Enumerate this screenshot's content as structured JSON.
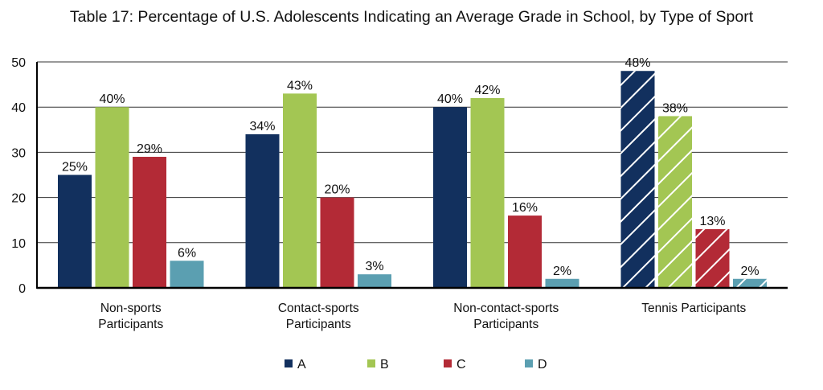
{
  "chart_data": {
    "type": "bar",
    "title": "Table 17: Percentage of U.S. Adolescents Indicating an Average Grade in School, by Type of Sport",
    "xlabel": "",
    "ylabel": "",
    "ylim": [
      0,
      50
    ],
    "yticks": [
      0,
      10,
      20,
      30,
      40,
      50
    ],
    "grid": true,
    "legend_position": "bottom",
    "categories": [
      [
        "Non-sports",
        "Participants"
      ],
      [
        "Contact-sports",
        "Participants"
      ],
      [
        "Non-contact-sports",
        "Participants"
      ],
      [
        "Tennis Participants"
      ]
    ],
    "hatched_categories": [
      3
    ],
    "series": [
      {
        "name": "A",
        "color": "#12305e",
        "values": [
          25,
          34,
          40,
          48
        ],
        "labels": [
          "25%",
          "34%",
          "40%",
          "48%"
        ]
      },
      {
        "name": "B",
        "color": "#a3c653",
        "values": [
          40,
          43,
          42,
          38
        ],
        "labels": [
          "40%",
          "43%",
          "42%",
          "38%"
        ]
      },
      {
        "name": "C",
        "color": "#b32a36",
        "values": [
          29,
          20,
          16,
          13
        ],
        "labels": [
          "29%",
          "20%",
          "16%",
          "13%"
        ]
      },
      {
        "name": "D",
        "color": "#5b9fb1",
        "values": [
          6,
          3,
          2,
          2
        ],
        "labels": [
          "6%",
          "3%",
          "2%",
          "2%"
        ]
      }
    ]
  }
}
